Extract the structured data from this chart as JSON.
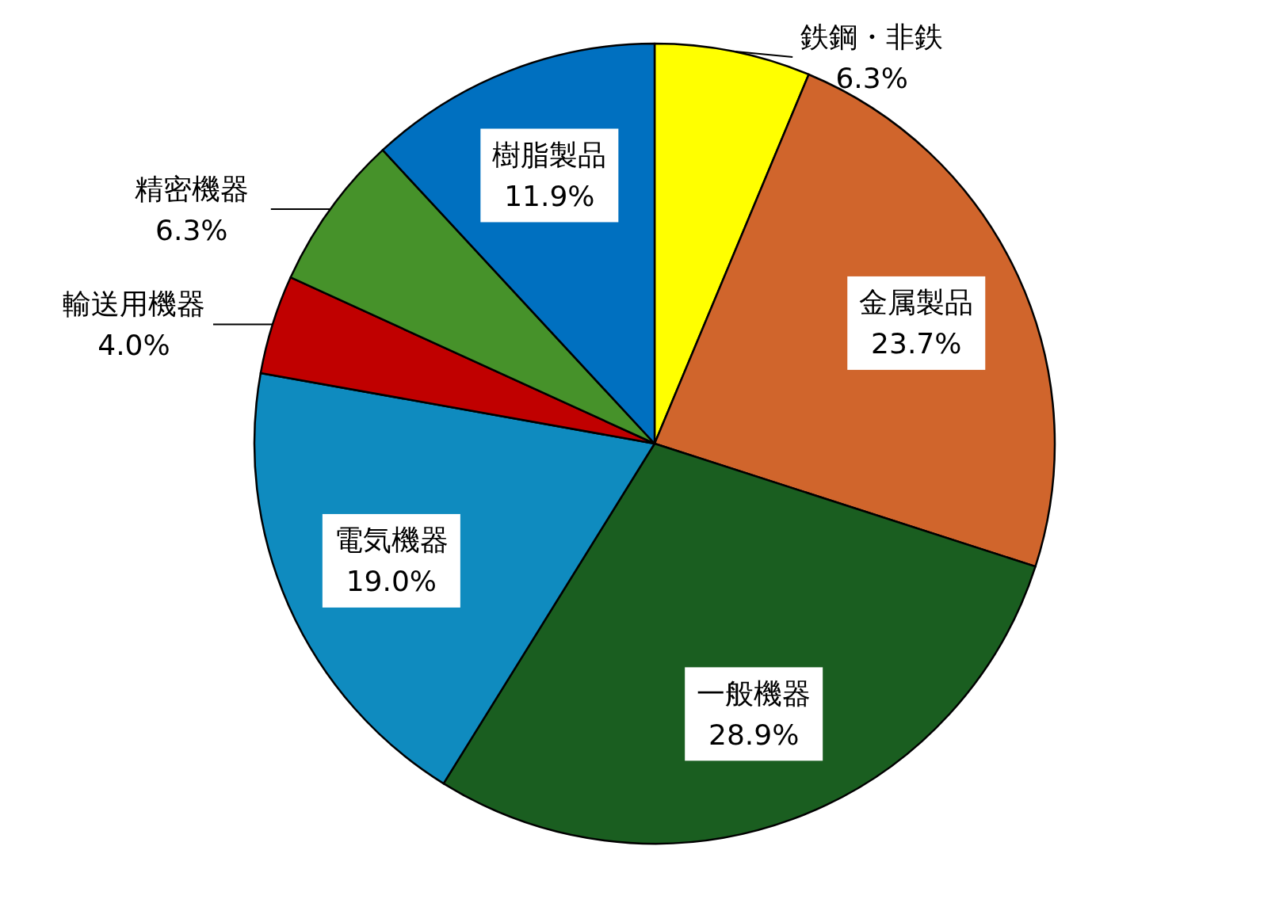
{
  "chart_data": {
    "type": "pie",
    "categories": [
      "鉄鋼・非鉄",
      "金属製品",
      "一般機器",
      "電気機器",
      "輸送用機器",
      "精密機器",
      "樹脂製品"
    ],
    "values": [
      6.3,
      23.7,
      28.9,
      19.0,
      4.0,
      6.3,
      11.9
    ],
    "value_labels": [
      "6.3%",
      "23.7%",
      "28.9%",
      "19.0%",
      "4.0%",
      "6.3%",
      "11.9%"
    ],
    "colors": [
      "#ffff00",
      "#d0652c",
      "#1a5e20",
      "#0f8bbf",
      "#c00000",
      "#46922a",
      "#0070c0"
    ]
  }
}
